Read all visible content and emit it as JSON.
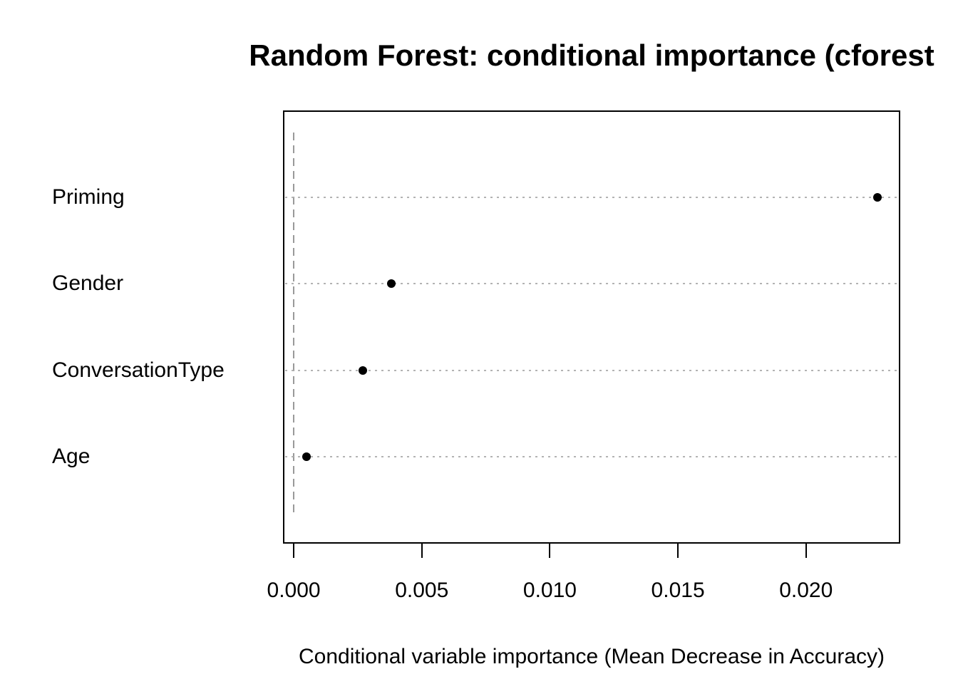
{
  "chart_data": {
    "type": "scatter",
    "variant": "r-dotchart",
    "title": "Random Forest: conditional importance (cforest",
    "xlabel": "Conditional variable importance (Mean Decrease in Accuracy)",
    "categories": [
      "Priming",
      "Gender",
      "ConversationType",
      "Age"
    ],
    "values": [
      0.0228,
      0.0038,
      0.0027,
      0.0005
    ],
    "x_ticks": [
      0,
      0.005,
      0.01,
      0.015,
      0.02
    ],
    "x_tick_labels": [
      "0.000",
      "0.005",
      "0.010",
      "0.015",
      "0.020"
    ],
    "xlim": [
      -0.00042,
      0.02368
    ],
    "reference_line_x": 0,
    "grid": "dotted-horizontal-per-category",
    "legend": "none",
    "colors": {
      "point": "#000000",
      "box_border": "#000000",
      "reference_line": "#999999",
      "grid_line": "#b3b3b3",
      "text": "#000000",
      "background": "#ffffff"
    }
  }
}
